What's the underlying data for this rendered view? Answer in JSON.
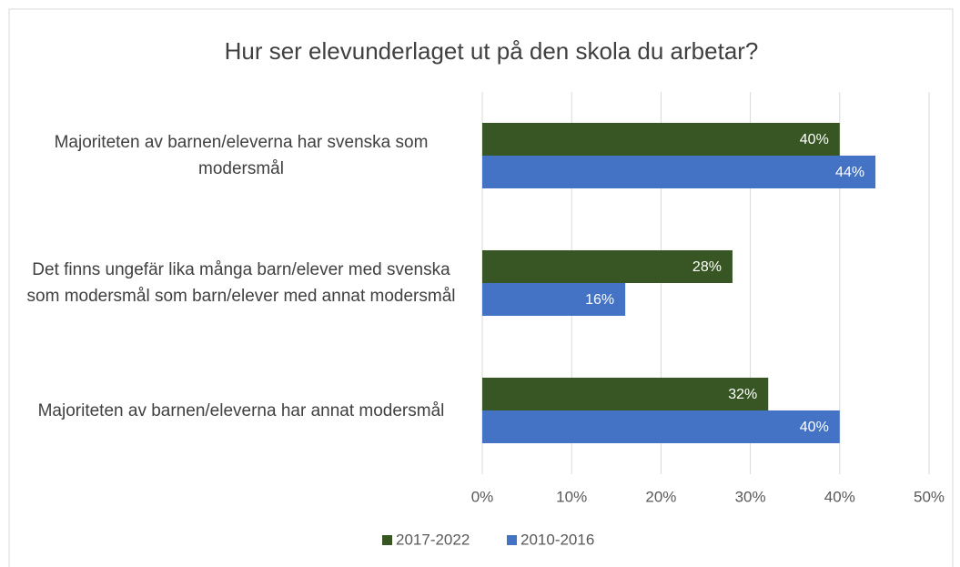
{
  "chart_data": {
    "type": "bar",
    "orientation": "horizontal",
    "title": "Hur ser elevunderlaget ut på den skola du arbetar?",
    "categories": [
      "Majoriteten av barnen/eleverna har svenska som modersmål",
      "Det finns ungefär lika många barn/elever med svenska som modersmål som barn/elever med annat modersmål",
      "Majoriteten av barnen/eleverna har annat modersmål"
    ],
    "series": [
      {
        "name": "2017-2022",
        "color": "#375623",
        "values": [
          40,
          28,
          32
        ],
        "value_labels": [
          "40%",
          "28%",
          "32%"
        ]
      },
      {
        "name": "2010-2016",
        "color": "#4472c4",
        "values": [
          44,
          16,
          40
        ],
        "value_labels": [
          "44%",
          "16%",
          "40%"
        ]
      }
    ],
    "xlim": [
      0,
      50
    ],
    "xticks": [
      {
        "value": 0,
        "label": "0%"
      },
      {
        "value": 10,
        "label": "10%"
      },
      {
        "value": 20,
        "label": "20%"
      },
      {
        "value": 30,
        "label": "30%"
      },
      {
        "value": 40,
        "label": "40%"
      },
      {
        "value": 50,
        "label": "50%"
      }
    ],
    "grid": true,
    "legend": "bottom"
  }
}
